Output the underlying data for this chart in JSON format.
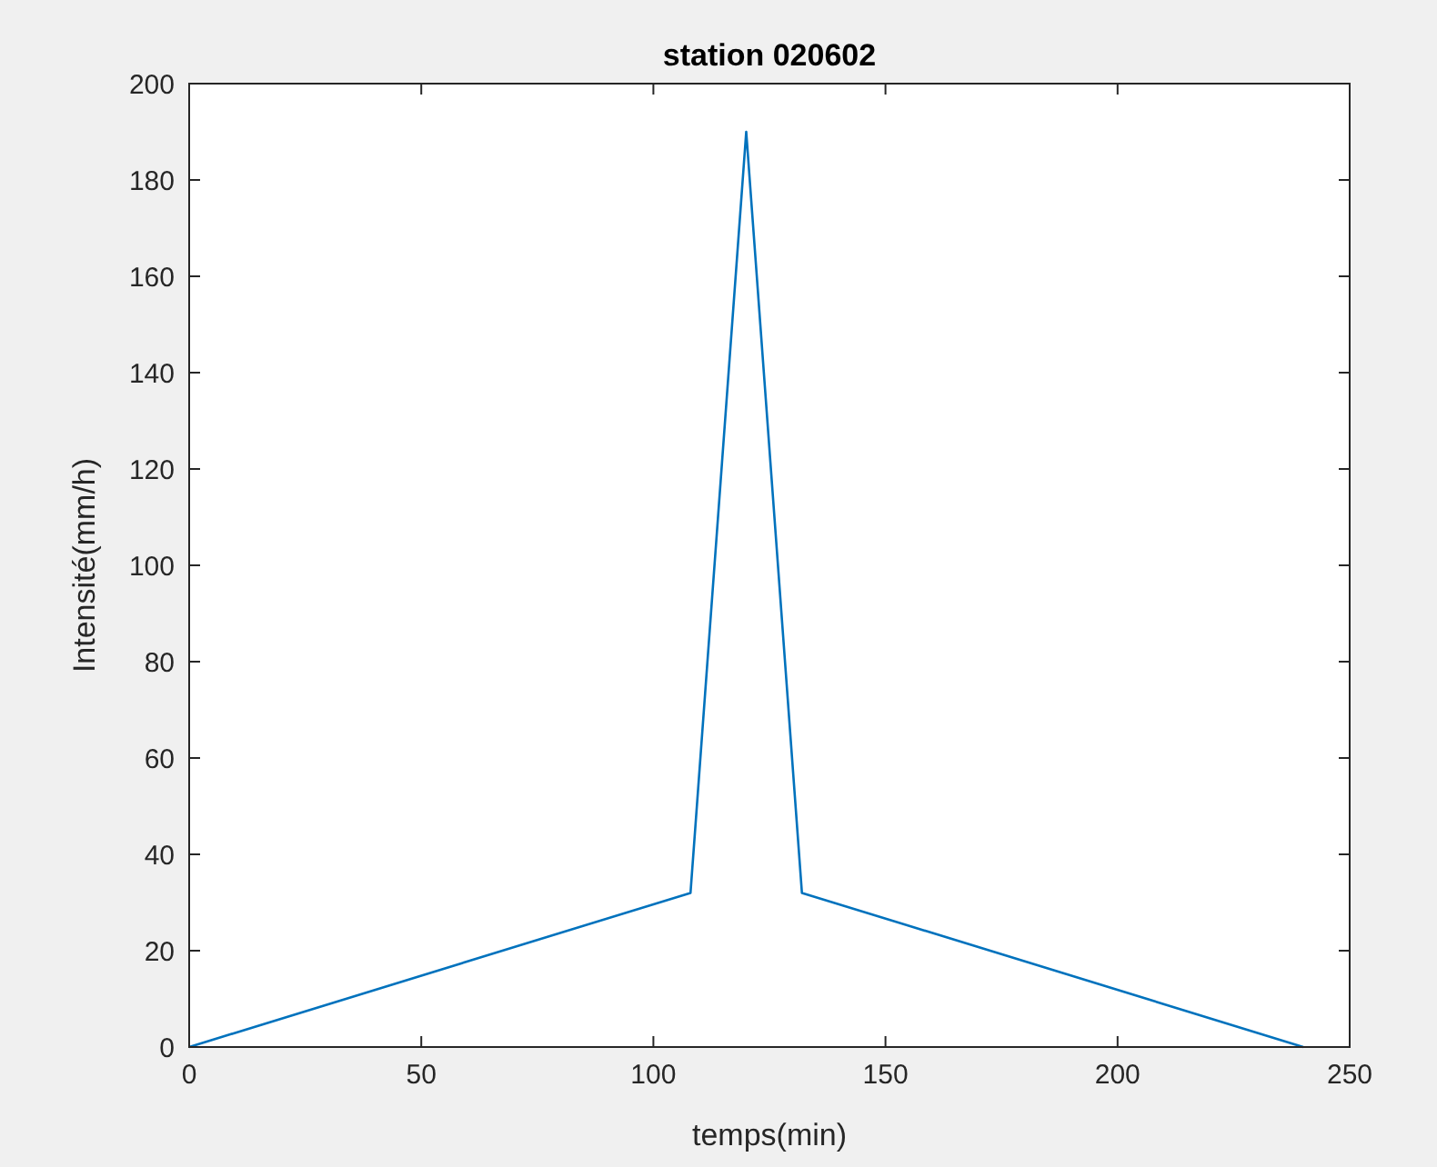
{
  "chart_data": {
    "type": "line",
    "title": "station 020602",
    "xlabel": "temps(min)",
    "ylabel": "Intensité(mm/h)",
    "x": [
      0,
      108,
      120,
      132,
      240
    ],
    "series": [
      {
        "color": "#0072bd",
        "values": [
          0,
          32,
          190,
          32,
          0
        ]
      }
    ],
    "xlim": [
      0,
      250
    ],
    "xticks": [
      0,
      50,
      100,
      150,
      200,
      250
    ],
    "ylim": [
      0,
      200
    ],
    "yticks": [
      0,
      20,
      40,
      60,
      80,
      100,
      120,
      140,
      160,
      180,
      200
    ],
    "grid": false
  }
}
